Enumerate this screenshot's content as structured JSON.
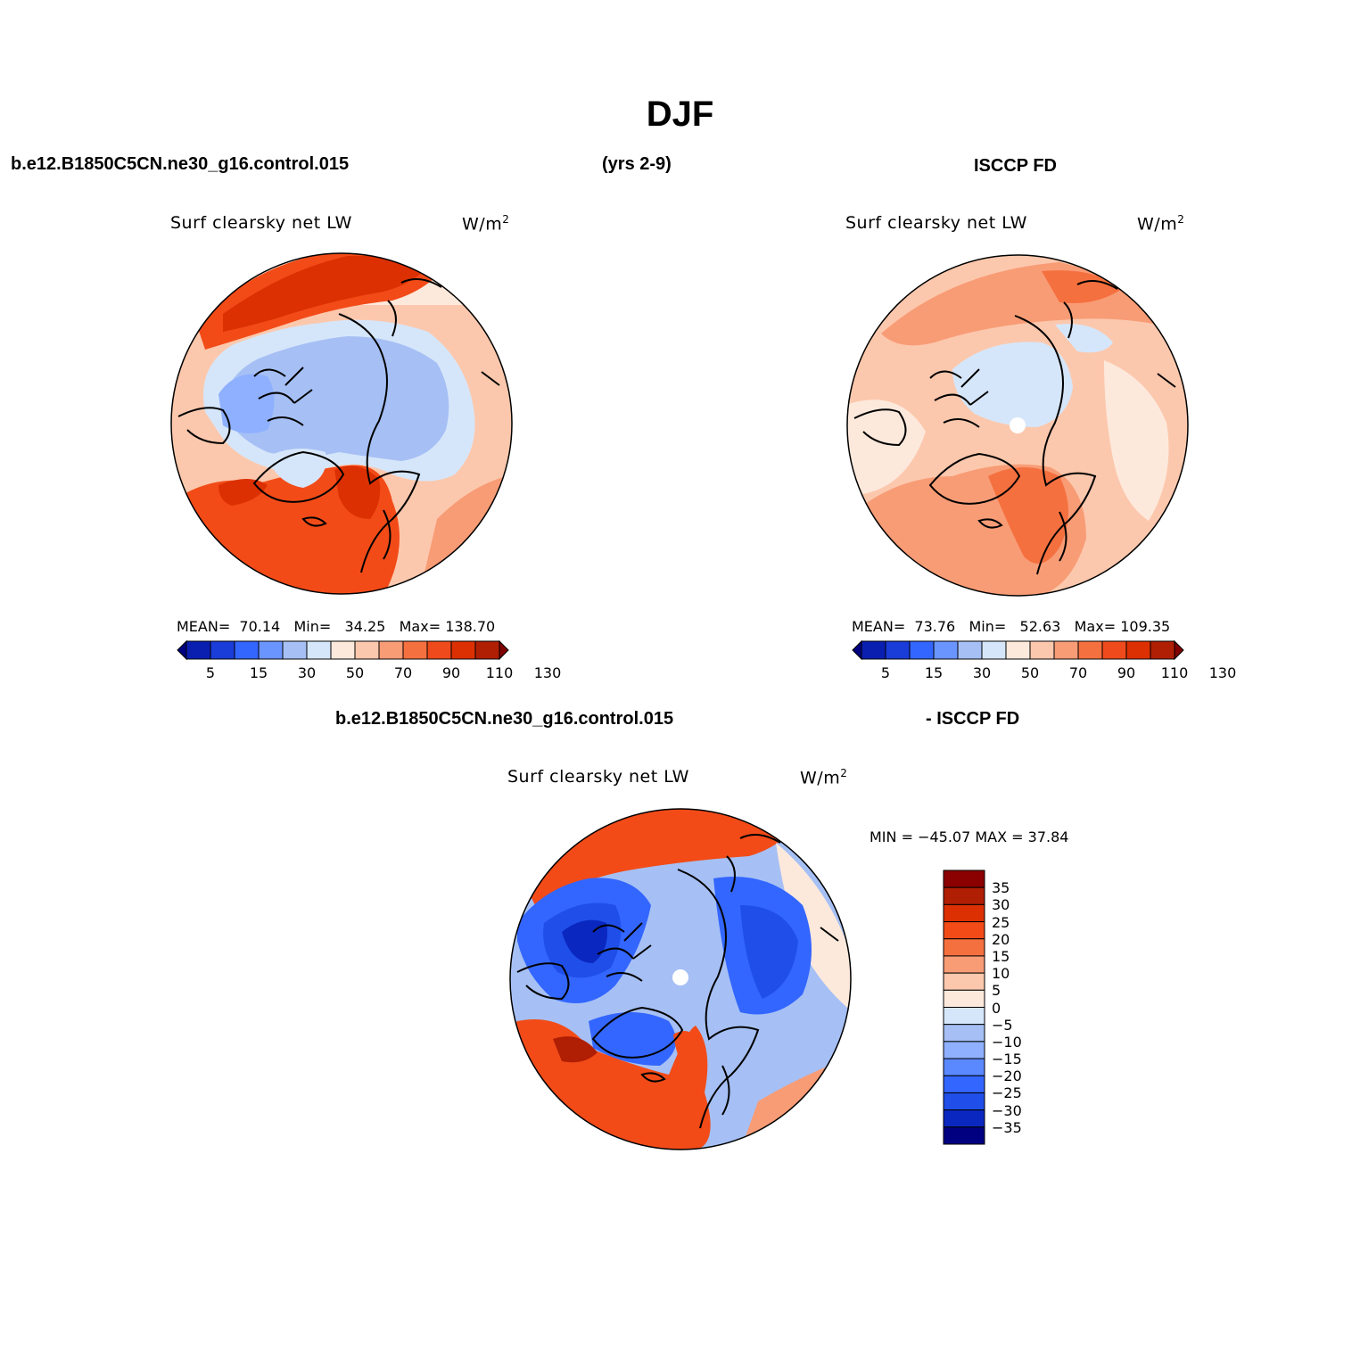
{
  "figure": {
    "title": "DJF",
    "case_name": "b.e12.B1850C5CN.ne30_g16.control.015",
    "years": "(yrs 2-9)",
    "obs_name": "ISCCP FD",
    "diff_case_name": "b.e12.B1850C5CN.ne30_g16.control.015",
    "diff_obs_name": "- ISCCP FD"
  },
  "panels": {
    "model": {
      "variable": "Surf clearsky net LW",
      "units_base": "W/m",
      "units_exp": "2",
      "stats": {
        "mean_label": "MEAN=",
        "mean": "70.14",
        "min_label": "Min=",
        "min": "34.25",
        "max_label": "Max=",
        "max": "138.70"
      }
    },
    "obs": {
      "variable": "Surf clearsky net LW",
      "units_base": "W/m",
      "units_exp": "2",
      "stats": {
        "mean_label": "MEAN=",
        "mean": "73.76",
        "min_label": "Min=",
        "min": "52.63",
        "max_label": "Max=",
        "max": "109.35"
      }
    },
    "diff": {
      "variable": "Surf clearsky net LW",
      "units_base": "W/m",
      "units_exp": "2",
      "minmax": "MIN = −45.07  MAX =   37.84"
    }
  },
  "colorbar_abs": {
    "colors": [
      "#000080",
      "#0a1fb0",
      "#1a3cd8",
      "#3366ff",
      "#6a95ff",
      "#a6c0f5",
      "#d6e6fa",
      "#fde9dc",
      "#fcc8ad",
      "#f89c76",
      "#f5703f",
      "#ef4a1c",
      "#dc3002",
      "#b01e03",
      "#800000"
    ],
    "tick_labels": [
      "5",
      "15",
      "30",
      "50",
      "70",
      "90",
      "110",
      "130"
    ]
  },
  "colorbar_diff": {
    "colors_top_to_bottom": [
      "#8b0000",
      "#b01e03",
      "#dc3002",
      "#f24b18",
      "#f5703f",
      "#f89c76",
      "#fcc8ad",
      "#fde9dc",
      "#d6e6fa",
      "#a6c0f5",
      "#8eb0ff",
      "#5a88ff",
      "#3366ff",
      "#1f4fe8",
      "#0a28c0",
      "#000080"
    ],
    "tick_labels": [
      "35",
      "30",
      "25",
      "20",
      "15",
      "10",
      "5",
      "0",
      "−5",
      "−10",
      "−15",
      "−20",
      "−25",
      "−30",
      "−35"
    ]
  },
  "map_colors": {
    "deep_red": "#b01e03",
    "red": "#dc3002",
    "orange_red": "#f24b18",
    "orange": "#f5703f",
    "salmon": "#f89c76",
    "peach": "#fcc8ad",
    "pale_peach": "#fde9dc",
    "pale_blue": "#d6e6fa",
    "light_blue": "#a6c0f5",
    "mid_blue": "#8eb0ff",
    "blue": "#3366ff",
    "deep_blue": "#1f4fe8",
    "navy": "#0a28c0",
    "pole": "#ffffff"
  }
}
